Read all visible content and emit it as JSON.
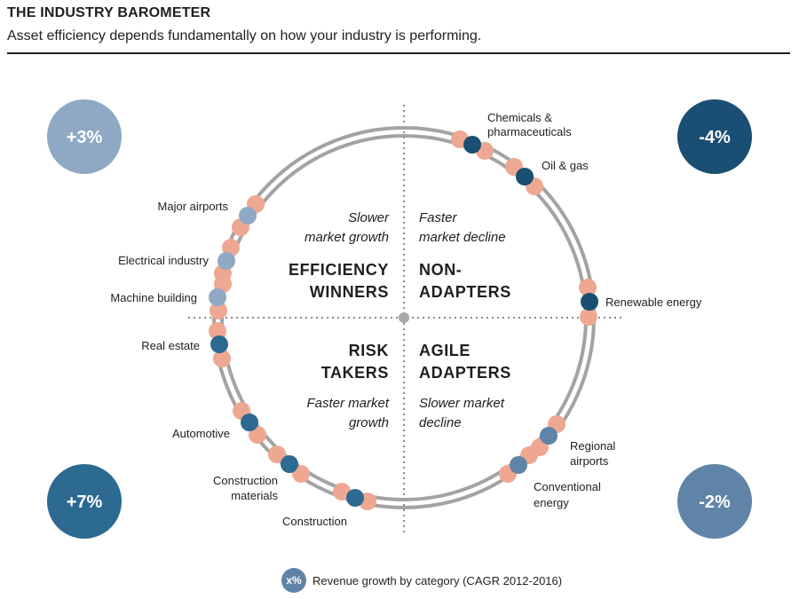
{
  "header": {
    "title": "THE INDUSTRY BAROMETER",
    "subtitle": "Asset efficiency depends fundamentally on how your industry is performing."
  },
  "colors": {
    "salmon": "#eea892",
    "dark_blue": "#1a4e73",
    "mid_blue": "#2c6a92",
    "steel_blue": "#5f84a7",
    "light_blue": "#8fa9c4",
    "ring": "#9a9a9a",
    "axis": "#8a8a8a"
  },
  "quadrants": {
    "top_left": {
      "title_line1": "EFFICIENCY",
      "title_line2": "WINNERS",
      "desc_line1": "Slower",
      "desc_line2": "market growth",
      "growth": "+3%"
    },
    "top_right": {
      "title_line1": "NON-",
      "title_line2": "ADAPTERS",
      "desc_line1": "Faster",
      "desc_line2": "market decline",
      "growth": "-4%"
    },
    "bottom_left": {
      "title_line1": "RISK",
      "title_line2": "TAKERS",
      "desc_line1": "Faster market",
      "desc_line2": "growth",
      "growth": "+7%"
    },
    "bottom_right": {
      "title_line1": "AGILE",
      "title_line2": "ADAPTERS",
      "desc_line1": "Slower market",
      "desc_line2": "decline",
      "growth": "-2%"
    }
  },
  "industries": {
    "chemicals": {
      "line1": "Chemicals &",
      "line2": "pharmaceuticals"
    },
    "oil_gas": "Oil & gas",
    "renewable": "Renewable energy",
    "regional_airports": {
      "line1": "Regional",
      "line2": "airports"
    },
    "conventional_energy": {
      "line1": "Conventional",
      "line2": "energy"
    },
    "construction": "Construction",
    "construction_materials": {
      "line1": "Construction",
      "line2": "materials"
    },
    "automotive": "Automotive",
    "real_estate": "Real estate",
    "machine_building": "Machine building",
    "electrical_industry": "Electrical industry",
    "major_airports": "Major airports"
  },
  "legend": {
    "symbol": "x%",
    "text": "Revenue growth by category (CAGR 2012-2016)"
  }
}
